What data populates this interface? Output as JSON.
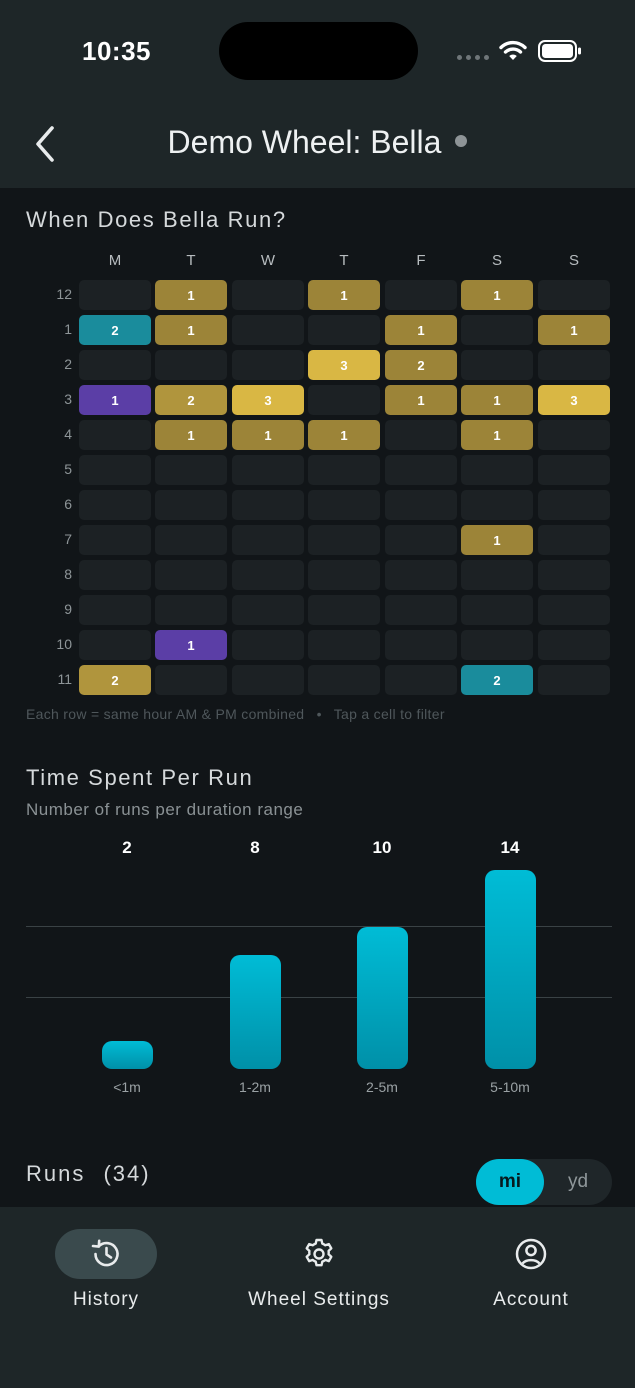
{
  "status_bar": {
    "time": "10:35"
  },
  "header": {
    "title": "Demo Wheel: Bella"
  },
  "heatmap": {
    "title": "When Does Bella Run?",
    "days": [
      "M",
      "T",
      "W",
      "T",
      "F",
      "S",
      "S"
    ],
    "hours": [
      "12",
      "1",
      "2",
      "3",
      "4",
      "5",
      "6",
      "7",
      "8",
      "9",
      "10",
      "11"
    ],
    "counts": [
      [
        0,
        1,
        0,
        1,
        0,
        1,
        0
      ],
      [
        2,
        1,
        0,
        0,
        1,
        0,
        1
      ],
      [
        0,
        0,
        0,
        3,
        2,
        0,
        0
      ],
      [
        1,
        2,
        3,
        0,
        1,
        1,
        3
      ],
      [
        0,
        1,
        1,
        1,
        0,
        1,
        0
      ],
      [
        0,
        0,
        0,
        0,
        0,
        0,
        0
      ],
      [
        0,
        0,
        0,
        0,
        0,
        0,
        0
      ],
      [
        0,
        0,
        0,
        0,
        0,
        1,
        0
      ],
      [
        0,
        0,
        0,
        0,
        0,
        0,
        0
      ],
      [
        0,
        0,
        0,
        0,
        0,
        0,
        0
      ],
      [
        0,
        1,
        0,
        0,
        0,
        0,
        0
      ],
      [
        2,
        0,
        0,
        0,
        0,
        2,
        0
      ]
    ],
    "colors": {
      "r0c1": "#9c8438",
      "r0c3": "#9c8438",
      "r0c5": "#9c8438",
      "r1c0": "#1a8c9c",
      "r1c1": "#9c8438",
      "r1c4": "#9c8438",
      "r1c6": "#9c8438",
      "r2c3": "#d9b744",
      "r2c4": "#9c8438",
      "r3c0": "#5b3ea6",
      "r3c1": "#b0953d",
      "r3c2": "#d9b744",
      "r3c4": "#9c8438",
      "r3c5": "#9c8438",
      "r3c6": "#d9b744",
      "r4c1": "#9c8438",
      "r4c2": "#9c8438",
      "r4c3": "#9c8438",
      "r4c5": "#9c8438",
      "r7c5": "#9c8438",
      "r10c1": "#5b3ea6",
      "r11c0": "#b0953d",
      "r11c5": "#1a8c9c"
    },
    "note_left": "Each row = same hour AM & PM combined",
    "note_sep": "•",
    "note_right": "Tap a cell to filter"
  },
  "duration_chart": {
    "title": "Time Spent Per Run",
    "subtitle": "Number of runs per duration range",
    "chart_data": {
      "type": "bar",
      "categories": [
        "<1m",
        "1-2m",
        "2-5m",
        "5-10m"
      ],
      "values": [
        2,
        8,
        10,
        14
      ],
      "ylim": [
        0,
        14
      ],
      "grid": true,
      "bar_color": "#00bcd6"
    }
  },
  "runs": {
    "label": "Runs",
    "count": "(34)"
  },
  "units": {
    "active": "mi",
    "inactive": "yd"
  },
  "tabs": {
    "history": "History",
    "wheel_settings": "Wheel Settings",
    "account": "Account"
  },
  "colors": {
    "accent": "#00bcd6",
    "bar_bg": "#1e2628",
    "page_bg": "#111518"
  }
}
